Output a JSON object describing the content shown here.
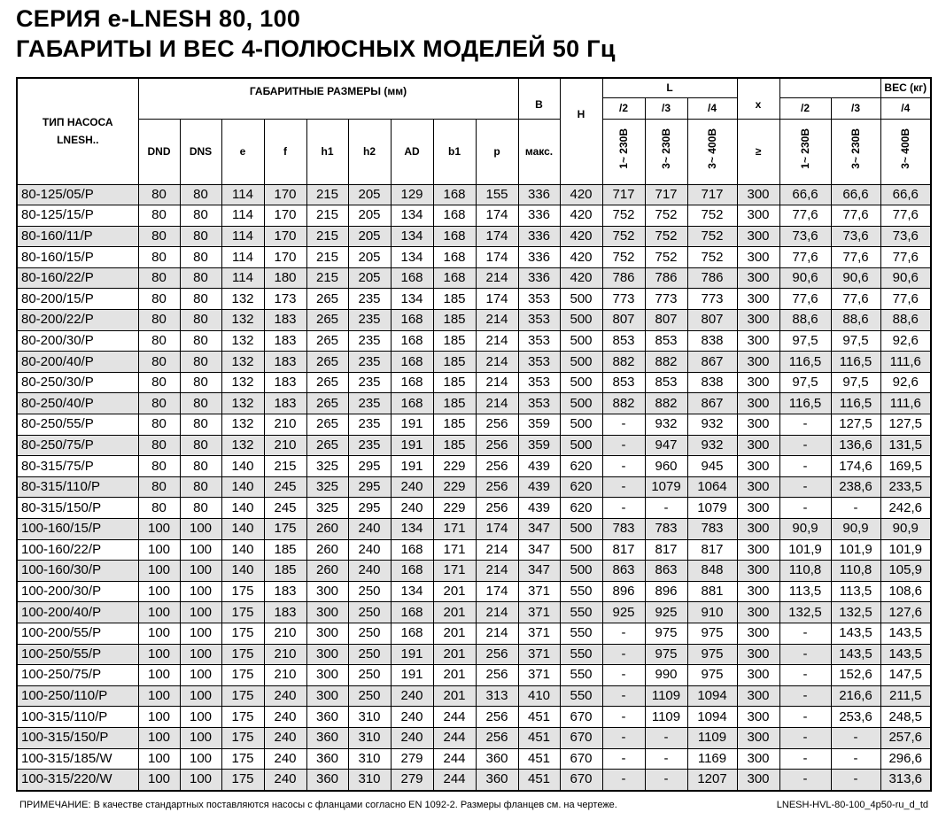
{
  "title_line1": "СЕРИЯ e-LNESH 80, 100",
  "title_line2": "ГАБАРИТЫ И ВЕС 4-ПОЛЮСНЫХ МОДЕЛЕЙ 50 Гц",
  "header": {
    "type": "ТИП НАСОСА",
    "type2": "LNESH..",
    "dims_group": "ГАБАРИТНЫЕ РАЗМЕРЫ (мм)",
    "dims": [
      "DND",
      "DNS",
      "e",
      "f",
      "h1",
      "h2",
      "AD",
      "b1",
      "p"
    ],
    "B": "B",
    "B_sub": "макс.",
    "H": "H",
    "L": "L",
    "L_sub": [
      "/2",
      "/3",
      "/4"
    ],
    "L_volt": [
      "1~ 230В",
      "3~ 230В",
      "3~ 400В"
    ],
    "x": "x",
    "x_sub": "≥",
    "weight": "ВЕС (кг)",
    "w_sub": [
      "/2",
      "/3",
      "/4"
    ],
    "w_volt": [
      "1~ 230В",
      "3~ 230В",
      "3~ 400В"
    ]
  },
  "rows": [
    [
      "80-125/05/P",
      "80",
      "80",
      "114",
      "170",
      "215",
      "205",
      "129",
      "168",
      "155",
      "336",
      "420",
      "717",
      "717",
      "717",
      "300",
      "66,6",
      "66,6",
      "66,6"
    ],
    [
      "80-125/15/P",
      "80",
      "80",
      "114",
      "170",
      "215",
      "205",
      "134",
      "168",
      "174",
      "336",
      "420",
      "752",
      "752",
      "752",
      "300",
      "77,6",
      "77,6",
      "77,6"
    ],
    [
      "80-160/11/P",
      "80",
      "80",
      "114",
      "170",
      "215",
      "205",
      "134",
      "168",
      "174",
      "336",
      "420",
      "752",
      "752",
      "752",
      "300",
      "73,6",
      "73,6",
      "73,6"
    ],
    [
      "80-160/15/P",
      "80",
      "80",
      "114",
      "170",
      "215",
      "205",
      "134",
      "168",
      "174",
      "336",
      "420",
      "752",
      "752",
      "752",
      "300",
      "77,6",
      "77,6",
      "77,6"
    ],
    [
      "80-160/22/P",
      "80",
      "80",
      "114",
      "180",
      "215",
      "205",
      "168",
      "168",
      "214",
      "336",
      "420",
      "786",
      "786",
      "786",
      "300",
      "90,6",
      "90,6",
      "90,6"
    ],
    [
      "80-200/15/P",
      "80",
      "80",
      "132",
      "173",
      "265",
      "235",
      "134",
      "185",
      "174",
      "353",
      "500",
      "773",
      "773",
      "773",
      "300",
      "77,6",
      "77,6",
      "77,6"
    ],
    [
      "80-200/22/P",
      "80",
      "80",
      "132",
      "183",
      "265",
      "235",
      "168",
      "185",
      "214",
      "353",
      "500",
      "807",
      "807",
      "807",
      "300",
      "88,6",
      "88,6",
      "88,6"
    ],
    [
      "80-200/30/P",
      "80",
      "80",
      "132",
      "183",
      "265",
      "235",
      "168",
      "185",
      "214",
      "353",
      "500",
      "853",
      "853",
      "838",
      "300",
      "97,5",
      "97,5",
      "92,6"
    ],
    [
      "80-200/40/P",
      "80",
      "80",
      "132",
      "183",
      "265",
      "235",
      "168",
      "185",
      "214",
      "353",
      "500",
      "882",
      "882",
      "867",
      "300",
      "116,5",
      "116,5",
      "111,6"
    ],
    [
      "80-250/30/P",
      "80",
      "80",
      "132",
      "183",
      "265",
      "235",
      "168",
      "185",
      "214",
      "353",
      "500",
      "853",
      "853",
      "838",
      "300",
      "97,5",
      "97,5",
      "92,6"
    ],
    [
      "80-250/40/P",
      "80",
      "80",
      "132",
      "183",
      "265",
      "235",
      "168",
      "185",
      "214",
      "353",
      "500",
      "882",
      "882",
      "867",
      "300",
      "116,5",
      "116,5",
      "111,6"
    ],
    [
      "80-250/55/P",
      "80",
      "80",
      "132",
      "210",
      "265",
      "235",
      "191",
      "185",
      "256",
      "359",
      "500",
      "-",
      "932",
      "932",
      "300",
      "-",
      "127,5",
      "127,5"
    ],
    [
      "80-250/75/P",
      "80",
      "80",
      "132",
      "210",
      "265",
      "235",
      "191",
      "185",
      "256",
      "359",
      "500",
      "-",
      "947",
      "932",
      "300",
      "-",
      "136,6",
      "131,5"
    ],
    [
      "80-315/75/P",
      "80",
      "80",
      "140",
      "215",
      "325",
      "295",
      "191",
      "229",
      "256",
      "439",
      "620",
      "-",
      "960",
      "945",
      "300",
      "-",
      "174,6",
      "169,5"
    ],
    [
      "80-315/110/P",
      "80",
      "80",
      "140",
      "245",
      "325",
      "295",
      "240",
      "229",
      "256",
      "439",
      "620",
      "-",
      "1079",
      "1064",
      "300",
      "-",
      "238,6",
      "233,5"
    ],
    [
      "80-315/150/P",
      "80",
      "80",
      "140",
      "245",
      "325",
      "295",
      "240",
      "229",
      "256",
      "439",
      "620",
      "-",
      "-",
      "1079",
      "300",
      "-",
      "-",
      "242,6"
    ],
    [
      "100-160/15/P",
      "100",
      "100",
      "140",
      "175",
      "260",
      "240",
      "134",
      "171",
      "174",
      "347",
      "500",
      "783",
      "783",
      "783",
      "300",
      "90,9",
      "90,9",
      "90,9"
    ],
    [
      "100-160/22/P",
      "100",
      "100",
      "140",
      "185",
      "260",
      "240",
      "168",
      "171",
      "214",
      "347",
      "500",
      "817",
      "817",
      "817",
      "300",
      "101,9",
      "101,9",
      "101,9"
    ],
    [
      "100-160/30/P",
      "100",
      "100",
      "140",
      "185",
      "260",
      "240",
      "168",
      "171",
      "214",
      "347",
      "500",
      "863",
      "863",
      "848",
      "300",
      "110,8",
      "110,8",
      "105,9"
    ],
    [
      "100-200/30/P",
      "100",
      "100",
      "175",
      "183",
      "300",
      "250",
      "134",
      "201",
      "174",
      "371",
      "550",
      "896",
      "896",
      "881",
      "300",
      "113,5",
      "113,5",
      "108,6"
    ],
    [
      "100-200/40/P",
      "100",
      "100",
      "175",
      "183",
      "300",
      "250",
      "168",
      "201",
      "214",
      "371",
      "550",
      "925",
      "925",
      "910",
      "300",
      "132,5",
      "132,5",
      "127,6"
    ],
    [
      "100-200/55/P",
      "100",
      "100",
      "175",
      "210",
      "300",
      "250",
      "168",
      "201",
      "214",
      "371",
      "550",
      "-",
      "975",
      "975",
      "300",
      "-",
      "143,5",
      "143,5"
    ],
    [
      "100-250/55/P",
      "100",
      "100",
      "175",
      "210",
      "300",
      "250",
      "191",
      "201",
      "256",
      "371",
      "550",
      "-",
      "975",
      "975",
      "300",
      "-",
      "143,5",
      "143,5"
    ],
    [
      "100-250/75/P",
      "100",
      "100",
      "175",
      "210",
      "300",
      "250",
      "191",
      "201",
      "256",
      "371",
      "550",
      "-",
      "990",
      "975",
      "300",
      "-",
      "152,6",
      "147,5"
    ],
    [
      "100-250/110/P",
      "100",
      "100",
      "175",
      "240",
      "300",
      "250",
      "240",
      "201",
      "313",
      "410",
      "550",
      "-",
      "1109",
      "1094",
      "300",
      "-",
      "216,6",
      "211,5"
    ],
    [
      "100-315/110/P",
      "100",
      "100",
      "175",
      "240",
      "360",
      "310",
      "240",
      "244",
      "256",
      "451",
      "670",
      "-",
      "1109",
      "1094",
      "300",
      "-",
      "253,6",
      "248,5"
    ],
    [
      "100-315/150/P",
      "100",
      "100",
      "175",
      "240",
      "360",
      "310",
      "240",
      "244",
      "256",
      "451",
      "670",
      "-",
      "-",
      "1109",
      "300",
      "-",
      "-",
      "257,6"
    ],
    [
      "100-315/185/W",
      "100",
      "100",
      "175",
      "240",
      "360",
      "310",
      "279",
      "244",
      "360",
      "451",
      "670",
      "-",
      "-",
      "1169",
      "300",
      "-",
      "-",
      "296,6"
    ],
    [
      "100-315/220/W",
      "100",
      "100",
      "175",
      "240",
      "360",
      "310",
      "279",
      "244",
      "360",
      "451",
      "670",
      "-",
      "-",
      "1207",
      "300",
      "-",
      "-",
      "313,6"
    ]
  ],
  "note": "ПРИМЕЧАНИЕ: В качестве стандартных поставляются насосы с фланцами согласно EN 1092-2. Размеры фланцев см. на чертеже.",
  "doc_code": "LNESH-HVL-80-100_4p50-ru_d_td"
}
